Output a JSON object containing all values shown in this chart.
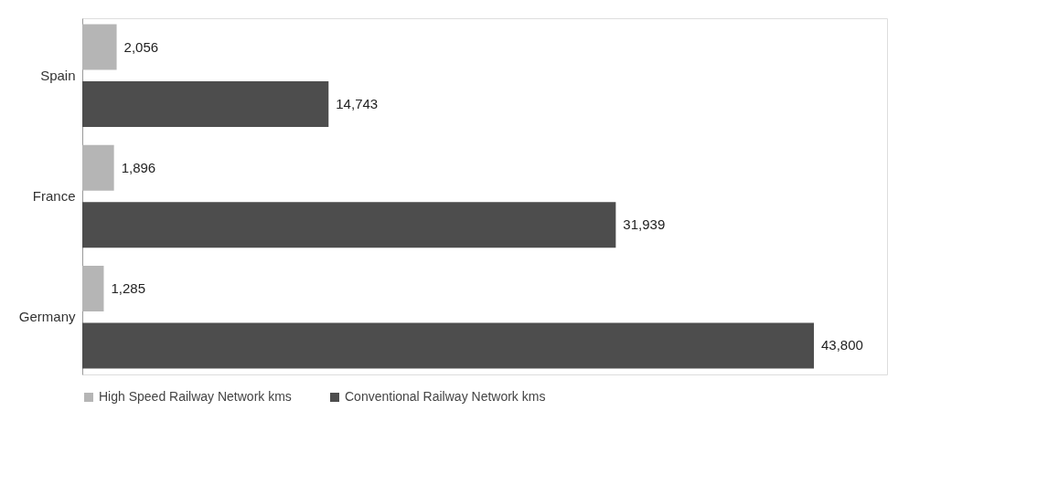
{
  "chart_data": {
    "type": "bar",
    "orientation": "horizontal",
    "categories": [
      "Spain",
      "France",
      "Germany"
    ],
    "series": [
      {
        "name": "High Speed Railway Network kms",
        "color": "#b5b5b5",
        "values": [
          2056,
          1896,
          1285
        ],
        "value_labels": [
          "2,056",
          "1,896",
          "1,285"
        ]
      },
      {
        "name": "Conventional Railway Network kms",
        "color": "#4d4d4d",
        "values": [
          14743,
          31939,
          43800
        ],
        "value_labels": [
          "14,743",
          "31,939",
          "43,800"
        ]
      }
    ],
    "legend": "bottom",
    "grid": false
  }
}
